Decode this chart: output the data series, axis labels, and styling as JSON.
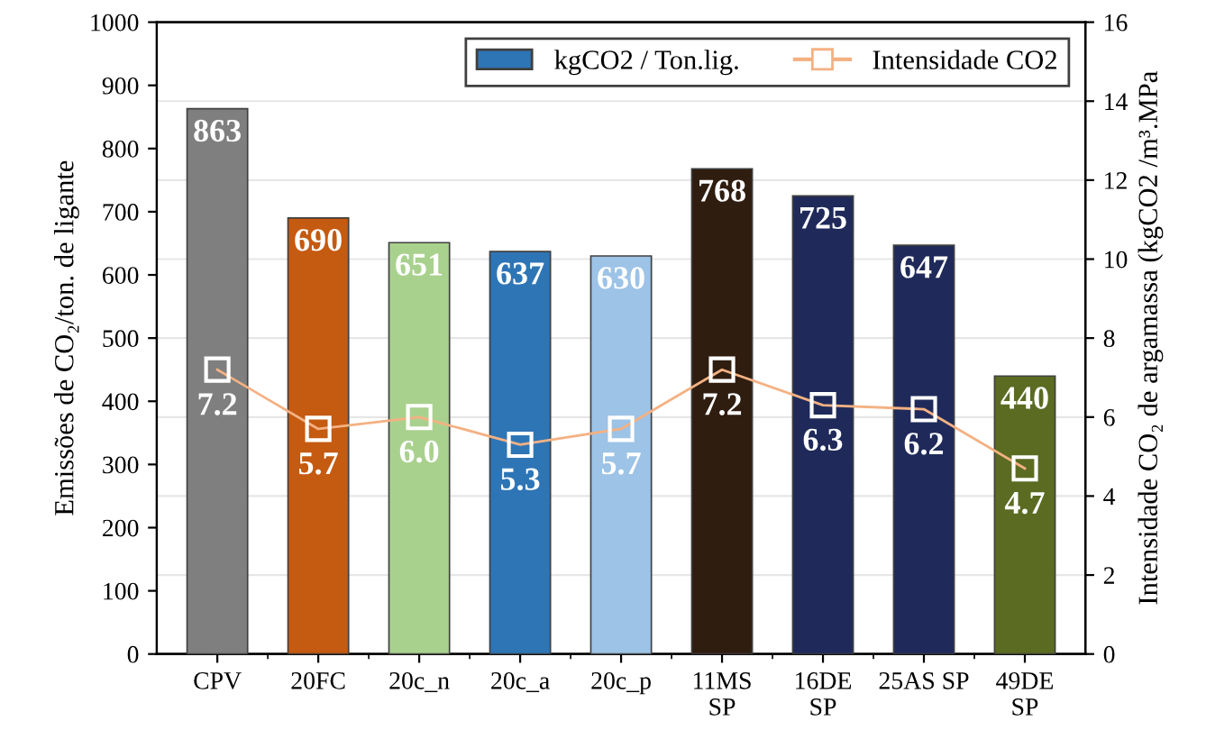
{
  "chart_data": {
    "type": "bar",
    "categories": [
      "CPV",
      "20FC",
      "20c_n",
      "20c_a",
      "20c_p",
      "11MS\nSP",
      "16DE\nSP",
      "25AS SP",
      "49DE\nSP"
    ],
    "ylabel": "Emissões de CO₂/ton. de ligante",
    "y2label": "Intensidade CO₂ de argamassa (kgCO2 /m³.MPa",
    "ylim": [
      0,
      1000
    ],
    "yticks": [
      0,
      100,
      200,
      300,
      400,
      500,
      600,
      700,
      800,
      900,
      1000
    ],
    "y2lim": [
      0,
      16
    ],
    "y2ticks": [
      0,
      2,
      4,
      6,
      8,
      10,
      12,
      14,
      16
    ],
    "grid": true,
    "legend": "top right",
    "data_labels": true,
    "series": [
      {
        "name": "kgCO2 / Ton.lig.",
        "color": "#2e75b6",
        "colors": [
          "#7f7f7f",
          "#c55a11",
          "#a9d18e",
          "#2e75b6",
          "#9dc3e6",
          "#2f1d10",
          "#1f2a5a",
          "#1f2a5a",
          "#5b6b22"
        ],
        "values": [
          863,
          690,
          651,
          637,
          630,
          768,
          725,
          647,
          440
        ]
      },
      {
        "name": "Intensidade CO2",
        "type": "line",
        "axis": "y2",
        "color": "#f4b183",
        "marker": "square",
        "values": [
          7.2,
          5.7,
          6.0,
          5.3,
          5.7,
          7.2,
          6.3,
          6.2,
          4.7
        ],
        "value_labels": [
          "7.2",
          "5.7",
          "6.0",
          "5.3",
          "5.7",
          "7.2",
          "6.3",
          "6.2",
          "4.7"
        ]
      }
    ]
  }
}
